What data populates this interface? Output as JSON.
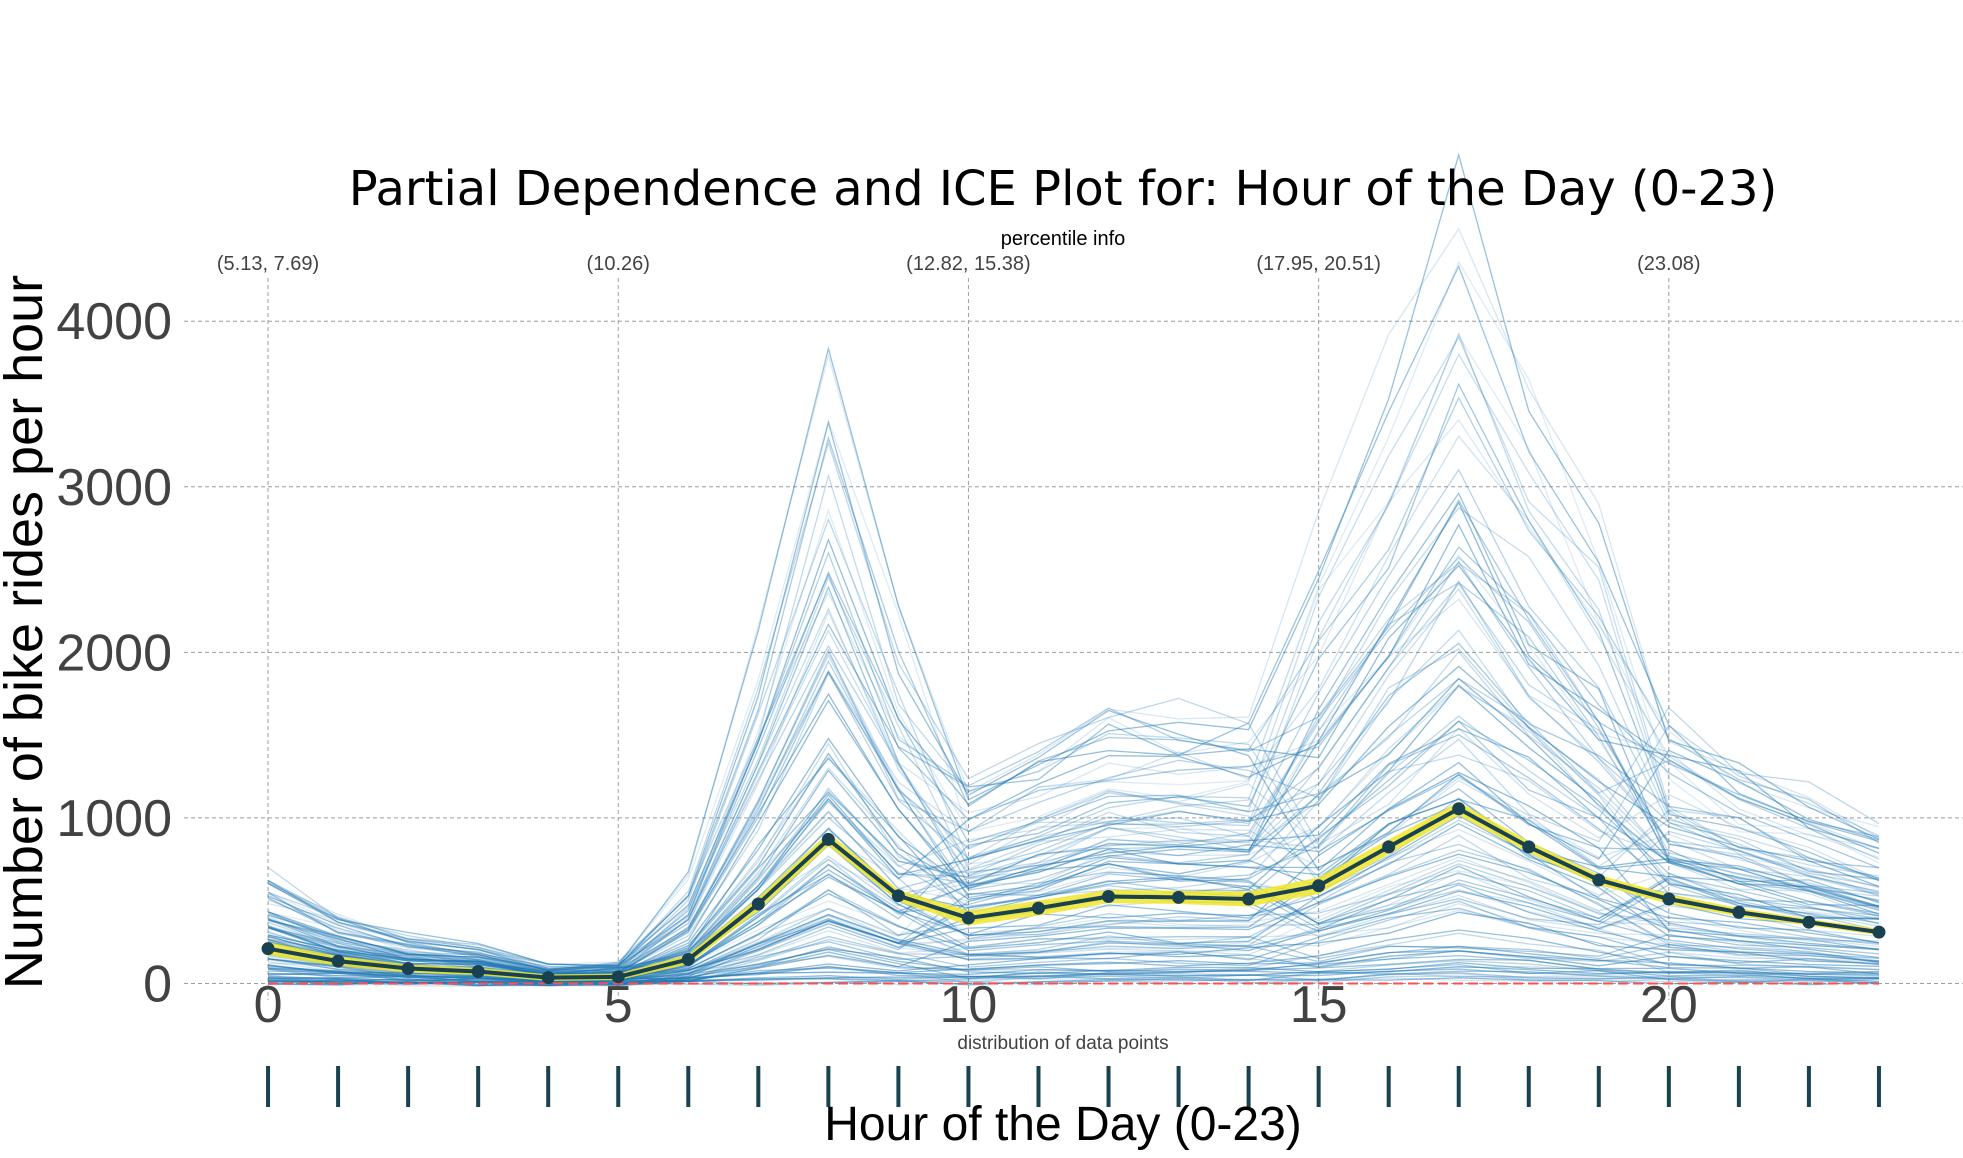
{
  "chart_data": {
    "type": "line",
    "title": "Partial Dependence and ICE Plot for: Hour of the Day (0-23)",
    "xlabel": "Hour of the Day (0-23)",
    "ylabel": "Number of bike rides per hour",
    "percentile_label": "percentile info",
    "distribution_label": "distribution of data points",
    "xlim": [
      -1.2,
      24.2
    ],
    "ylim": [
      -100,
      4400
    ],
    "x_ticks": [
      0,
      5,
      10,
      15,
      20
    ],
    "y_ticks": [
      0,
      1000,
      2000,
      3000,
      4000
    ],
    "percentile_ticks": [
      {
        "x": 0,
        "label": "(5.13, 7.69)"
      },
      {
        "x": 5,
        "label": "(10.26)"
      },
      {
        "x": 10,
        "label": "(12.82, 15.38)"
      },
      {
        "x": 15,
        "label": "(17.95, 20.51)"
      },
      {
        "x": 20,
        "label": "(23.08)"
      }
    ],
    "x": [
      0,
      1,
      2,
      3,
      4,
      5,
      6,
      7,
      8,
      9,
      10,
      11,
      12,
      13,
      14,
      15,
      16,
      17,
      18,
      19,
      20,
      21,
      22,
      23
    ],
    "pdp": [
      210,
      135,
      90,
      72,
      35,
      40,
      145,
      480,
      870,
      530,
      395,
      455,
      525,
      520,
      510,
      590,
      825,
      1055,
      825,
      625,
      510,
      430,
      370,
      310
    ],
    "pdp_upper": [
      250,
      165,
      115,
      95,
      55,
      60,
      175,
      520,
      910,
      565,
      440,
      500,
      565,
      560,
      555,
      640,
      870,
      1095,
      860,
      655,
      540,
      455,
      390,
      330
    ],
    "pdp_lower": [
      170,
      105,
      65,
      50,
      15,
      20,
      115,
      440,
      830,
      495,
      350,
      410,
      485,
      480,
      465,
      540,
      780,
      1015,
      790,
      595,
      480,
      405,
      350,
      290
    ],
    "baseline": 0,
    "distribution_points": [
      0,
      1,
      2,
      3,
      4,
      5,
      6,
      7,
      8,
      9,
      10,
      11,
      12,
      13,
      14,
      15,
      16,
      17,
      18,
      19,
      20,
      21,
      22,
      23
    ],
    "ice_line_count": 110,
    "colors": {
      "ice": "#1f77b4",
      "pdp_line": "#1a4150",
      "pdp_band": "#f0e62a",
      "baseline": "#ff4e50",
      "grid": "#9e9e9e",
      "distribution": "#1a4150",
      "tick_text": "#424242"
    }
  }
}
